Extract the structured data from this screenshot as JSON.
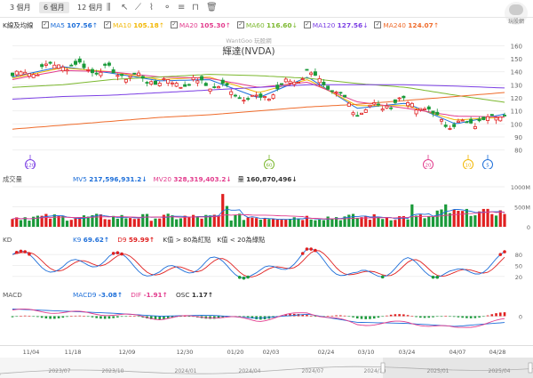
{
  "toolbar": {
    "ranges": [
      "3 個月",
      "6 個月",
      "12 個月"
    ],
    "active": 1,
    "tools": [
      {
        "name": "candlestick-icon",
        "glyph": "⫼"
      },
      {
        "name": "cursor-icon",
        "glyph": "↖"
      },
      {
        "name": "diagonal-line-icon",
        "glyph": "⟋"
      },
      {
        "name": "multipoint-line-icon",
        "glyph": "⌇"
      },
      {
        "name": "node-icon",
        "glyph": "⚬"
      },
      {
        "name": "fibonacci-icon",
        "glyph": "≡"
      },
      {
        "name": "ruler-icon",
        "glyph": "⊓"
      },
      {
        "name": "trash-icon",
        "glyph": "🗑"
      }
    ]
  },
  "logo": {
    "text": "玩股網"
  },
  "main": {
    "title": "輝達(NVDA)",
    "watermark": "WantGoo 玩股網",
    "legend_label": "K線及均線",
    "ma": [
      {
        "name": "MA5",
        "value": "107.56",
        "arrow": "↑",
        "color": "#1e6fd9"
      },
      {
        "name": "MA10",
        "value": "105.18",
        "arrow": "↑",
        "color": "#f2b705"
      },
      {
        "name": "MA20",
        "value": "105.30",
        "arrow": "↑",
        "color": "#e23c8d"
      },
      {
        "name": "MA60",
        "value": "116.60",
        "arrow": "↓",
        "color": "#7cb82f"
      },
      {
        "name": "MA120",
        "value": "127.56",
        "arrow": "↓",
        "color": "#7b3fe4"
      },
      {
        "name": "MA240",
        "value": "124.07",
        "arrow": "↑",
        "color": "#ef6c2c"
      }
    ],
    "yticks": [
      "160",
      "150",
      "140",
      "130",
      "120",
      "110",
      "100",
      "90",
      "80"
    ],
    "event_markers": [
      {
        "label": "120",
        "color": "#7b3fe4"
      },
      {
        "label": "60",
        "color": "#7cb82f"
      },
      {
        "label": "20",
        "color": "#e23c8d"
      },
      {
        "label": "10",
        "color": "#f2b705"
      },
      {
        "label": "5",
        "color": "#1e6fd9"
      }
    ]
  },
  "volume": {
    "label": "成交量",
    "mv5_name": "MV5",
    "mv5_value": "217,596,931.2↓",
    "mv20_name": "MV20",
    "mv20_value": "328,319,403.2↓",
    "vol_name": "量",
    "vol_value": "160,870,496↓",
    "yticks": [
      "1000M",
      "500M",
      "0"
    ],
    "colors": {
      "up": "#e02020",
      "down": "#1a9a3a",
      "mv5": "#1e6fd9",
      "mv20": "#e23c8d"
    }
  },
  "kd": {
    "label": "KD",
    "k_name": "K9",
    "k_value": "69.62↑",
    "d_name": "D9",
    "d_value": "59.99↑",
    "note1": "K值 > 80為紅點",
    "note2": "K值 < 20為綠點",
    "yticks": [
      "80",
      "50",
      "20"
    ],
    "colors": {
      "k": "#1e6fd9",
      "d": "#e02020"
    }
  },
  "macd": {
    "label": "MACD",
    "macd_name": "MACD9",
    "macd_value": "-3.08↑",
    "dif_name": "DIF",
    "dif_value": "-1.91↑",
    "osc_name": "OSC",
    "osc_value": "1.17↑",
    "yticks": [
      "0"
    ],
    "colors": {
      "macd": "#1e6fd9",
      "dif": "#e23c8d"
    }
  },
  "xaxis": {
    "dates": [
      "11/04",
      "11/18",
      "12/09",
      "12/30",
      "01/20",
      "02/03",
      "02/24",
      "03/10",
      "03/24",
      "04/07",
      "04/28"
    ]
  },
  "navigator": {
    "labels": [
      "2023/07",
      "2023/10",
      "2024/01",
      "2024/04",
      "2024/07",
      "2024/10",
      "2025/01",
      "2025/04"
    ]
  },
  "chart_data": {
    "type": "candlestick",
    "title": "輝達(NVDA)",
    "ylim": [
      75,
      165
    ],
    "categories": [
      "11/04",
      "11/18",
      "12/09",
      "12/30",
      "01/20",
      "02/03",
      "02/24",
      "03/10",
      "03/24",
      "04/07",
      "04/28"
    ],
    "series": [
      {
        "name": "Price",
        "values": [
          137,
          146,
          140,
          132,
          131,
          118,
          140,
          110,
          118,
          98,
          108
        ]
      },
      {
        "name": "MA5",
        "values": [
          136,
          144,
          139,
          133,
          134,
          120,
          136,
          112,
          116,
          100,
          107.56
        ]
      },
      {
        "name": "MA10",
        "values": [
          135,
          143,
          140,
          134,
          136,
          124,
          134,
          114,
          114,
          103,
          105.18
        ]
      },
      {
        "name": "MA20",
        "values": [
          134,
          141,
          140,
          136,
          135,
          128,
          132,
          117,
          112,
          106,
          105.3
        ]
      },
      {
        "name": "MA60",
        "values": [
          128,
          130,
          134,
          136,
          138,
          137,
          135,
          131,
          128,
          122,
          116.6
        ]
      },
      {
        "name": "MA120",
        "values": [
          119,
          121,
          122,
          124,
          126,
          128,
          130,
          130,
          130,
          129,
          127.56
        ]
      },
      {
        "name": "MA240",
        "values": [
          96,
          99,
          102,
          105,
          107,
          110,
          113,
          115,
          118,
          121,
          124.07
        ]
      }
    ],
    "kd": {
      "K": [
        80,
        40,
        75,
        25,
        60,
        20,
        85,
        15,
        55,
        20,
        69.62
      ],
      "D": [
        70,
        50,
        65,
        35,
        55,
        30,
        80,
        25,
        50,
        28,
        59.99
      ]
    },
    "macd": {
      "DIF": [
        3,
        2,
        1,
        -1,
        0,
        -2,
        2,
        -4,
        -3,
        -6,
        -1.91
      ],
      "MACD": [
        3.5,
        2.5,
        1.5,
        0,
        0.5,
        -1,
        1,
        -3,
        -3.5,
        -5,
        -3.08
      ]
    }
  }
}
